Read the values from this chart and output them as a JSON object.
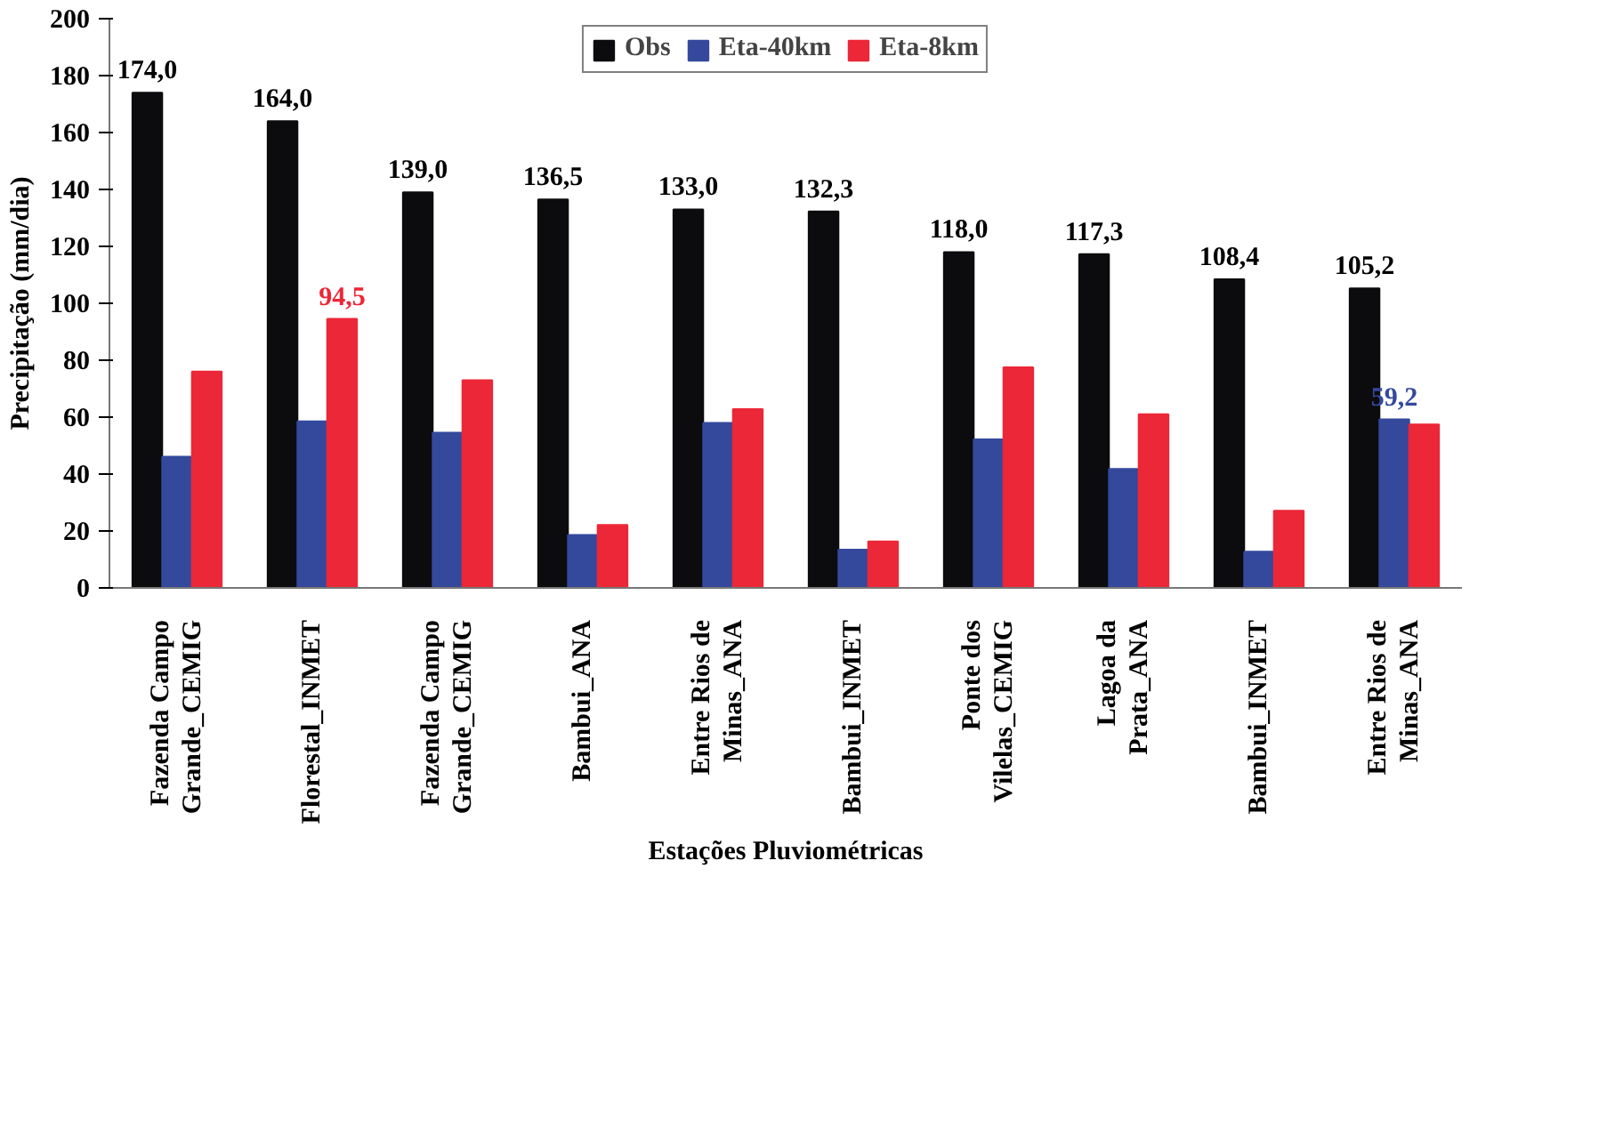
{
  "chart_data": {
    "type": "bar",
    "xlabel": "Estações Pluviométricas",
    "ylabel": "Precipitação (mm/dia)",
    "categories": [
      "Fazenda Campo\nGrande_CEMIG",
      "Florestal_INMET",
      "Fazenda Campo\nGrande_CEMIG",
      "Bambui_ANA",
      "Entre Rios de\nMinas_ANA",
      "Bambui_INMET",
      "Ponte dos\nVilelas_CEMIG",
      "Lagoa da\nPrata_ANA",
      "Bambui_INMET",
      "Entre Rios de\nMinas_ANA"
    ],
    "series": [
      {
        "name": "Obs",
        "color": "#0c0b0e",
        "values": [
          174.0,
          164.0,
          139.0,
          136.5,
          133.0,
          132.3,
          118.0,
          117.3,
          108.4,
          105.2
        ],
        "value_labels": [
          "174,0",
          "164,0",
          "139,0",
          "136,5",
          "133,0",
          "132,3",
          "118,0",
          "117,3",
          "108,4",
          "105,2"
        ]
      },
      {
        "name": "Eta-40km",
        "color": "#35499c",
        "values": [
          46.1,
          58.5,
          54.5,
          18.6,
          58,
          13.4,
          52.2,
          41.8,
          12.7,
          59.2
        ],
        "value_labels": [
          null,
          null,
          null,
          null,
          null,
          null,
          null,
          null,
          null,
          "59,2"
        ]
      },
      {
        "name": "Eta-8km",
        "color": "#ec2737",
        "values": [
          76,
          94.5,
          73,
          22.1,
          62.8,
          16.3,
          77.5,
          61,
          27.1,
          57.4
        ],
        "value_labels": [
          null,
          "94,5",
          null,
          null,
          null,
          null,
          null,
          null,
          null,
          null
        ]
      }
    ],
    "ylim": [
      0,
      200
    ],
    "yticks": [
      0,
      20,
      40,
      60,
      80,
      100,
      120,
      140,
      160,
      180,
      200
    ],
    "grid": false,
    "legend": "top"
  }
}
